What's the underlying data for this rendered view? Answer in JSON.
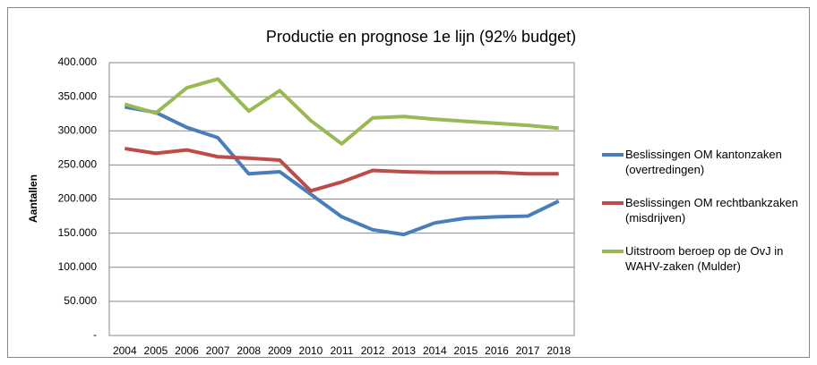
{
  "chart_data": {
    "type": "line",
    "title": "Productie en prognose 1e lijn (92% budget)",
    "y_label": "Aantallen",
    "categories": [
      "2004",
      "2005",
      "2006",
      "2007",
      "2008",
      "2009",
      "2010",
      "2011",
      "2012",
      "2013",
      "2014",
      "2015",
      "2016",
      "2017",
      "2018"
    ],
    "series": [
      {
        "name": "Beslissingen OM kantonzaken (overtredingen)",
        "color": "#4a7ebb",
        "values": [
          335000,
          327000,
          305000,
          290000,
          237000,
          240000,
          207000,
          174000,
          155000,
          148000,
          165000,
          172000,
          174000,
          175000,
          197000
        ]
      },
      {
        "name": "Beslissingen OM rechtbankzaken (misdrijven)",
        "color": "#be4b48",
        "values": [
          274000,
          267000,
          272000,
          262000,
          260000,
          257000,
          212000,
          225000,
          242000,
          240000,
          239000,
          239000,
          239000,
          237000,
          237000
        ]
      },
      {
        "name": "Uitstroom beroep op de OvJ in WAHV-zaken (Mulder)",
        "color": "#98b954",
        "values": [
          339000,
          326000,
          363000,
          376000,
          329000,
          359000,
          315000,
          281000,
          319000,
          321000,
          317000,
          314000,
          311000,
          308000,
          304000
        ]
      }
    ],
    "ylim": [
      0,
      400000
    ],
    "yticks": [
      {
        "value": 0,
        "label": "-"
      },
      {
        "value": 50000,
        "label": "50.000"
      },
      {
        "value": 100000,
        "label": "100.000"
      },
      {
        "value": 150000,
        "label": "150.000"
      },
      {
        "value": 200000,
        "label": "200.000"
      },
      {
        "value": 250000,
        "label": "250.000"
      },
      {
        "value": 300000,
        "label": "300.000"
      },
      {
        "value": 350000,
        "label": "350.000"
      },
      {
        "value": 400000,
        "label": "400.000"
      }
    ],
    "grid": true,
    "legend": "right"
  }
}
